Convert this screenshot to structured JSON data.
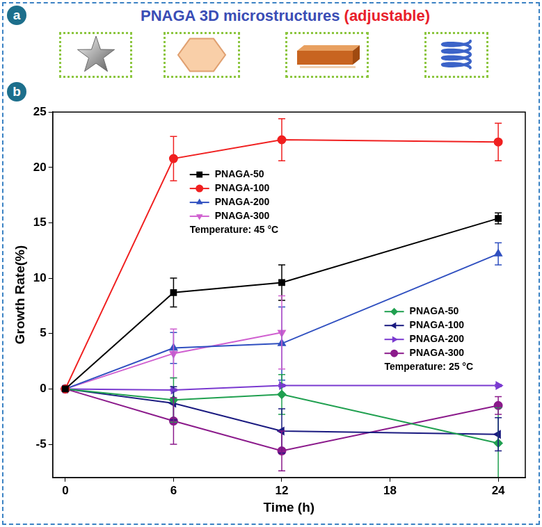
{
  "panel_a": {
    "letter": "a",
    "title": "PNAGA 3D microstructures",
    "title_note": "(adjustable)"
  },
  "panel_b": {
    "letter": "b"
  },
  "chart_data": {
    "type": "line",
    "x_label": "Time (h)",
    "y_label": "Growth Rate(%)",
    "x": [
      0,
      6,
      12,
      24
    ],
    "xlim": [
      -0.7,
      25.5
    ],
    "xticks": [
      0,
      6,
      12,
      18,
      24
    ],
    "ylim": [
      -8,
      25
    ],
    "yticks": [
      -5,
      0,
      5,
      10,
      15,
      20,
      25
    ],
    "grid": false,
    "legend": "inside",
    "groups": [
      {
        "annotation": "Temperature: 45 °C",
        "series": [
          {
            "name": "PNAGA-50",
            "color": "#000000",
            "marker": "square",
            "line_style": "solid",
            "values": [
              0,
              8.7,
              9.6,
              15.4
            ],
            "errors": [
              0,
              1.3,
              1.6,
              0.5
            ]
          },
          {
            "name": "PNAGA-100",
            "color": "#f02020",
            "marker": "circle",
            "line_style": "solid",
            "values": [
              0,
              20.8,
              22.5,
              22.3
            ],
            "errors": [
              0,
              2.0,
              1.9,
              1.7
            ]
          },
          {
            "name": "PNAGA-200",
            "color": "#3050c0",
            "marker": "triangle-up",
            "line_style": "solid",
            "values": [
              0,
              3.7,
              4.1,
              12.2
            ],
            "errors": [
              0,
              1.4,
              3.3,
              1.0
            ]
          },
          {
            "name": "PNAGA-300",
            "color": "#d060d0",
            "marker": "triangle-down",
            "line_style": "solid",
            "values": [
              0,
              3.2,
              5.1,
              null
            ],
            "errors": [
              0,
              2.2,
              3.3,
              null
            ]
          }
        ]
      },
      {
        "annotation": "Temperature: 25 °C",
        "series": [
          {
            "name": "PNAGA-50",
            "color": "#20a050",
            "marker": "diamond",
            "line_style": "solid",
            "values": [
              0,
              -1.0,
              -0.5,
              -4.9
            ],
            "errors": [
              0,
              2.0,
              1.8,
              3.2
            ]
          },
          {
            "name": "PNAGA-100",
            "color": "#1a1a80",
            "marker": "triangle-left",
            "line_style": "solid",
            "values": [
              0,
              -1.3,
              -3.8,
              -4.1
            ],
            "errors": [
              0,
              1.5,
              2.0,
              1.5
            ]
          },
          {
            "name": "PNAGA-200",
            "color": "#7a3ad0",
            "marker": "triangle-right",
            "line_style": "solid",
            "values": [
              0,
              -0.1,
              0.3,
              0.3
            ],
            "errors": [
              0,
              0.1,
              0.1,
              0.1
            ]
          },
          {
            "name": "PNAGA-300",
            "color": "#8b1a8b",
            "marker": "circle",
            "line_style": "solid",
            "values": [
              0,
              -2.9,
              -5.6,
              -1.5
            ],
            "errors": [
              0,
              2.1,
              1.8,
              0.8
            ]
          }
        ]
      }
    ]
  }
}
